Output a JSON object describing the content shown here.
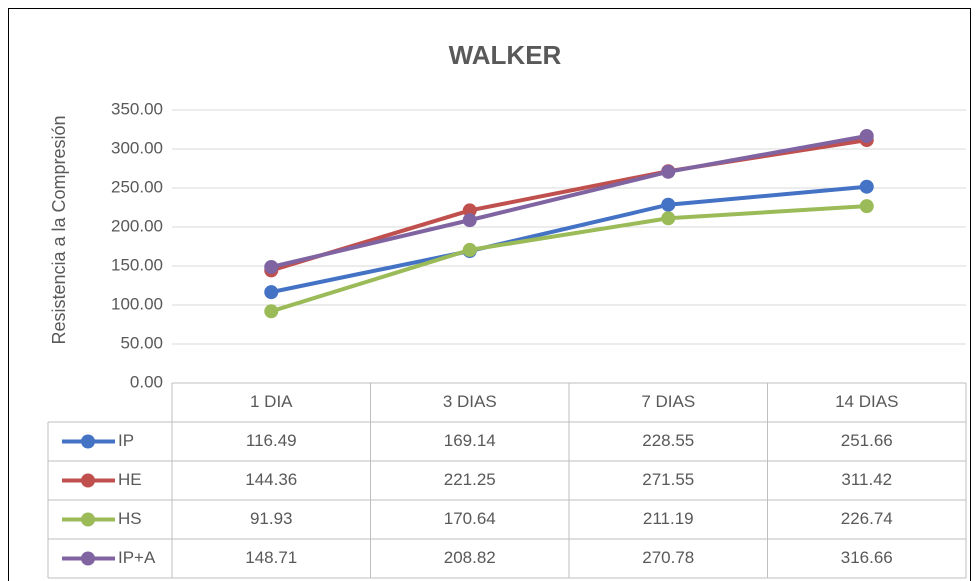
{
  "chart_data": {
    "type": "line",
    "title": "WALKER",
    "y_label": "Resistencia  a la Compresión",
    "categories": [
      "1 DIA",
      "3 DIAS",
      "7 DIAS",
      "14 DIAS"
    ],
    "series": [
      {
        "name": "IP",
        "color": "#4472c4",
        "values": [
          116.49,
          169.14,
          228.55,
          251.66
        ]
      },
      {
        "name": "HE",
        "color": "#c0504d",
        "values": [
          144.36,
          221.25,
          271.55,
          311.42
        ]
      },
      {
        "name": "HS",
        "color": "#9bbb59",
        "values": [
          91.93,
          170.64,
          211.19,
          226.74
        ]
      },
      {
        "name": "IP+A",
        "color": "#8064a2",
        "values": [
          148.71,
          208.82,
          270.78,
          316.66
        ]
      }
    ],
    "ylim": [
      0,
      350
    ],
    "yticks": [
      {
        "value": 0,
        "label": "0.00"
      },
      {
        "value": 50,
        "label": "50.00"
      },
      {
        "value": 100,
        "label": "100.00"
      },
      {
        "value": 150,
        "label": "150.00"
      },
      {
        "value": 200,
        "label": "200.00"
      },
      {
        "value": 250,
        "label": "250.00"
      },
      {
        "value": 300,
        "label": "300.00"
      },
      {
        "value": 350,
        "label": "350.00"
      }
    ],
    "grid": true,
    "data_table": true
  }
}
